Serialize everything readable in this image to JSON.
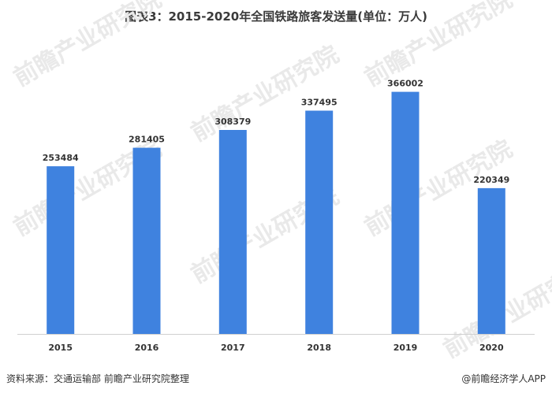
{
  "chart_data": {
    "type": "bar",
    "title": "图表3：2015-2020年全国铁路旅客发送量(单位：万人)",
    "categories": [
      "2015",
      "2016",
      "2017",
      "2018",
      "2019",
      "2020"
    ],
    "series": [
      {
        "values": [
          253484,
          281405,
          308379,
          337495,
          366002,
          220349
        ]
      }
    ],
    "ylim": [
      0,
      400000
    ],
    "grid": false,
    "legend": "none",
    "bar_color": "#3f82df"
  },
  "footer": {
    "source": "资料来源：交通运输部 前瞻产业研究院整理",
    "brand": "@前瞻经济学人APP"
  },
  "watermark": {
    "text": "前瞻产业研究院"
  }
}
